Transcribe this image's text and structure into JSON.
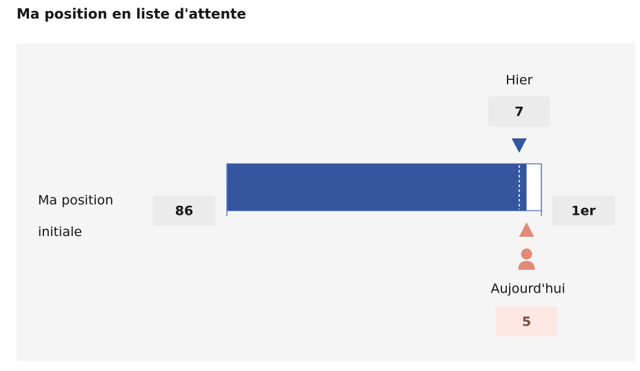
{
  "title": "Ma position en liste d'attente",
  "initial": {
    "label": "Ma position initiale",
    "value": 86
  },
  "yesterday": {
    "label": "Hier",
    "value": 7
  },
  "today": {
    "label": "Aujourd'hui",
    "value": 5
  },
  "end": {
    "value": 1,
    "label": "1er"
  }
}
